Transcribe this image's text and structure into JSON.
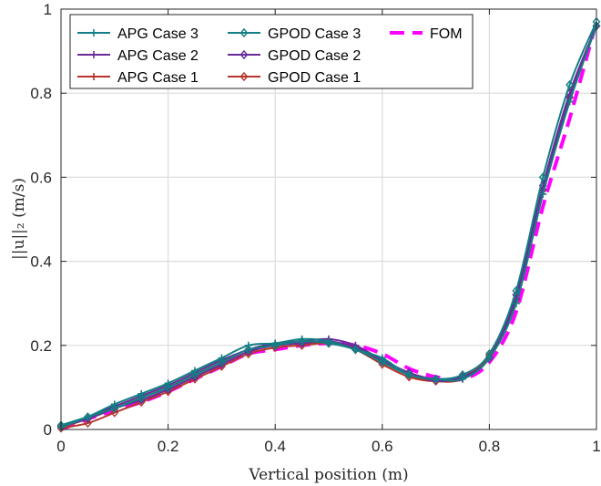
{
  "chart_data": {
    "type": "line",
    "xlabel": "Vertical position (m)",
    "ylabel": "||u||₂ (m/s)",
    "xlim": [
      0,
      1
    ],
    "ylim": [
      0,
      1
    ],
    "grid": true,
    "legend_position": "top-left",
    "xticks": [
      0,
      0.2,
      0.4,
      0.6,
      0.8,
      1
    ],
    "xtick_labels": [
      "0",
      "0.2",
      "0.4",
      "0.6",
      "0.8",
      "1"
    ],
    "yticks": [
      0,
      0.2,
      0.4,
      0.6,
      0.8,
      1
    ],
    "ytick_labels": [
      "0",
      "0.2",
      "0.4",
      "0.6",
      "0.8",
      "1"
    ],
    "x": [
      0.0,
      0.05,
      0.1,
      0.15,
      0.2,
      0.25,
      0.3,
      0.35,
      0.4,
      0.45,
      0.5,
      0.55,
      0.6,
      0.65,
      0.7,
      0.75,
      0.8,
      0.85,
      0.9,
      0.95,
      1.0
    ],
    "series": [
      {
        "name": "APG Case 3",
        "color": "#137f84",
        "marker": "plus",
        "style": "solid",
        "values": [
          0.005,
          0.03,
          0.06,
          0.085,
          0.11,
          0.14,
          0.17,
          0.2,
          0.205,
          0.215,
          0.21,
          0.19,
          0.17,
          0.13,
          0.12,
          0.12,
          0.17,
          0.3,
          0.56,
          0.78,
          0.96
        ]
      },
      {
        "name": "GPOD Case 3",
        "color": "#137f84",
        "marker": "diamond",
        "style": "solid",
        "values": [
          0.01,
          0.03,
          0.05,
          0.075,
          0.1,
          0.13,
          0.16,
          0.19,
          0.2,
          0.21,
          0.205,
          0.19,
          0.16,
          0.13,
          0.12,
          0.13,
          0.18,
          0.33,
          0.6,
          0.82,
          0.97
        ]
      },
      {
        "name": "FOM",
        "color": "#ff00ff",
        "marker": "none",
        "style": "dashed",
        "values": [
          0.0,
          0.025,
          0.045,
          0.065,
          0.09,
          0.12,
          0.15,
          0.18,
          0.19,
          0.2,
          0.205,
          0.2,
          0.18,
          0.145,
          0.125,
          0.12,
          0.16,
          0.28,
          0.53,
          0.74,
          0.97
        ]
      },
      {
        "name": "APG Case 2",
        "color": "#6a2c98",
        "marker": "plus",
        "style": "solid",
        "values": [
          0.005,
          0.03,
          0.055,
          0.08,
          0.105,
          0.135,
          0.165,
          0.19,
          0.205,
          0.21,
          0.215,
          0.2,
          0.165,
          0.135,
          0.115,
          0.125,
          0.17,
          0.31,
          0.57,
          0.79,
          0.96
        ]
      },
      {
        "name": "GPOD Case 2",
        "color": "#6a2c98",
        "marker": "diamond",
        "style": "solid",
        "values": [
          0.008,
          0.025,
          0.05,
          0.07,
          0.095,
          0.125,
          0.155,
          0.185,
          0.2,
          0.205,
          0.21,
          0.195,
          0.165,
          0.135,
          0.12,
          0.125,
          0.17,
          0.32,
          0.58,
          0.8,
          0.96
        ]
      },
      {
        "name": "APG Case 1",
        "color": "#b7352b",
        "marker": "plus",
        "style": "solid",
        "values": [
          0.005,
          0.025,
          0.05,
          0.075,
          0.1,
          0.13,
          0.16,
          0.19,
          0.2,
          0.205,
          0.205,
          0.195,
          0.16,
          0.13,
          0.115,
          0.12,
          0.17,
          0.3,
          0.56,
          0.78,
          0.96
        ]
      },
      {
        "name": "GPOD Case 1",
        "color": "#b7352b",
        "marker": "diamond",
        "style": "solid",
        "values": [
          0.003,
          0.015,
          0.04,
          0.065,
          0.09,
          0.12,
          0.15,
          0.18,
          0.195,
          0.2,
          0.205,
          0.19,
          0.155,
          0.125,
          0.115,
          0.125,
          0.175,
          0.31,
          0.57,
          0.79,
          0.96
        ]
      }
    ]
  }
}
